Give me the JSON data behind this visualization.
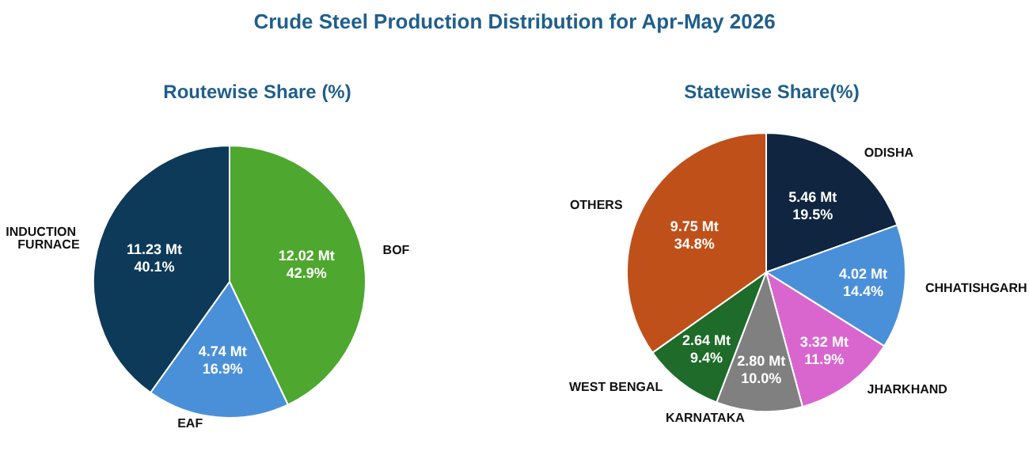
{
  "chart_data": [
    {
      "type": "pie",
      "title": "Routewise Share (%)",
      "annotations": [
        "Crude Steel Production Distribution for Apr-May 2026"
      ],
      "categories": [
        "BOF",
        "EAF",
        "INDUCTION FURNACE"
      ],
      "values": [
        42.9,
        16.9,
        40.1
      ],
      "colors": [
        "#4ea72e",
        "#4a90d9",
        "#0e3a5a"
      ],
      "value_labels": [
        "12.02 Mt\n42.9%",
        "4.74 Mt\n16.9%",
        "11.23 Mt\n40.1%"
      ]
    },
    {
      "type": "pie",
      "title": "Statewise Share(%)",
      "categories": [
        "ODISHA",
        "CHHATISHGARH",
        "JHARKHAND",
        "KARNATAKA",
        "WEST BENGAL",
        "OTHERS"
      ],
      "values": [
        19.5,
        14.4,
        11.9,
        10.0,
        9.4,
        34.8
      ],
      "colors": [
        "#0f2540",
        "#4a90d9",
        "#d966cf",
        "#808080",
        "#1e6b2a",
        "#c0501a"
      ],
      "value_labels": [
        "5.46 Mt\n19.5%",
        "4.02 Mt\n14.4%",
        "3.32 Mt\n11.9%",
        "2.80 Mt\n10.0%",
        "2.64 Mt\n9.4%",
        "9.75 Mt\n34.8%"
      ]
    }
  ]
}
